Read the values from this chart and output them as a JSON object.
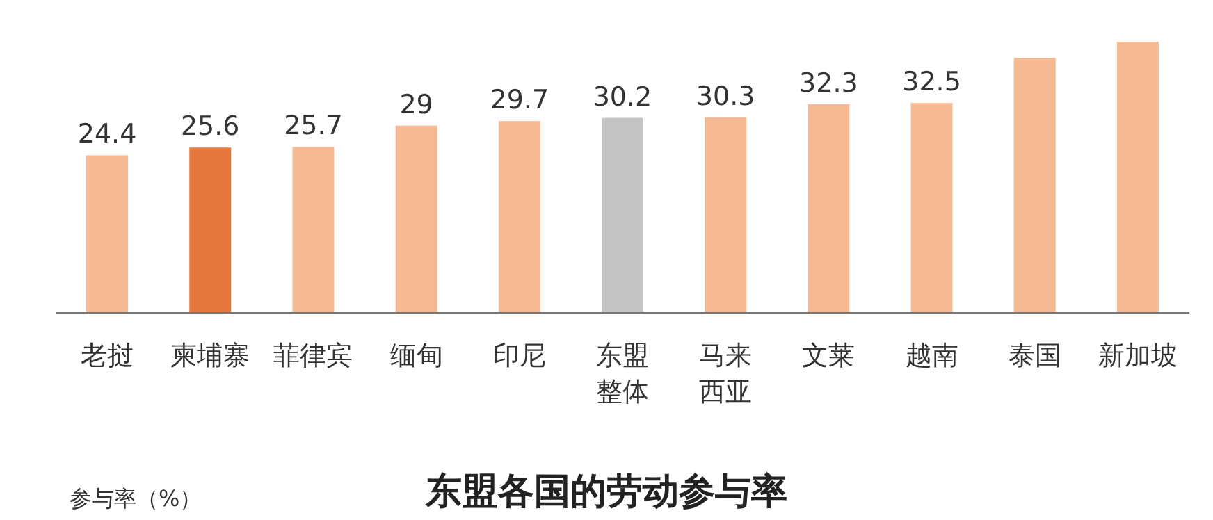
{
  "chart_data": {
    "type": "bar",
    "title": "东盟各国的劳动参与率",
    "annotations": [
      "参与率（%）"
    ],
    "categories": [
      "老挝",
      "柬埔寨",
      "菲律宾",
      "缅甸",
      "印尼",
      "东盟整体",
      "马来西亚",
      "文莱",
      "越南",
      "泰国",
      "新加坡"
    ],
    "values": [
      24.4,
      25.6,
      25.7,
      29,
      29.7,
      30.2,
      30.3,
      32.3,
      32.5,
      39.5,
      42
    ],
    "value_labels": [
      "24.4",
      "25.6",
      "25.7",
      "29",
      "29.7",
      "30.2",
      "30.3",
      "32.3",
      "32.5",
      null,
      null
    ],
    "colors": [
      "#f5b994",
      "#e5773d",
      "#f5b994",
      "#f5b994",
      "#f5b994",
      "#c4c4c4",
      "#f5b994",
      "#f5b994",
      "#f5b994",
      "#f5b994",
      "#f5b994"
    ],
    "data_labels": false
  }
}
